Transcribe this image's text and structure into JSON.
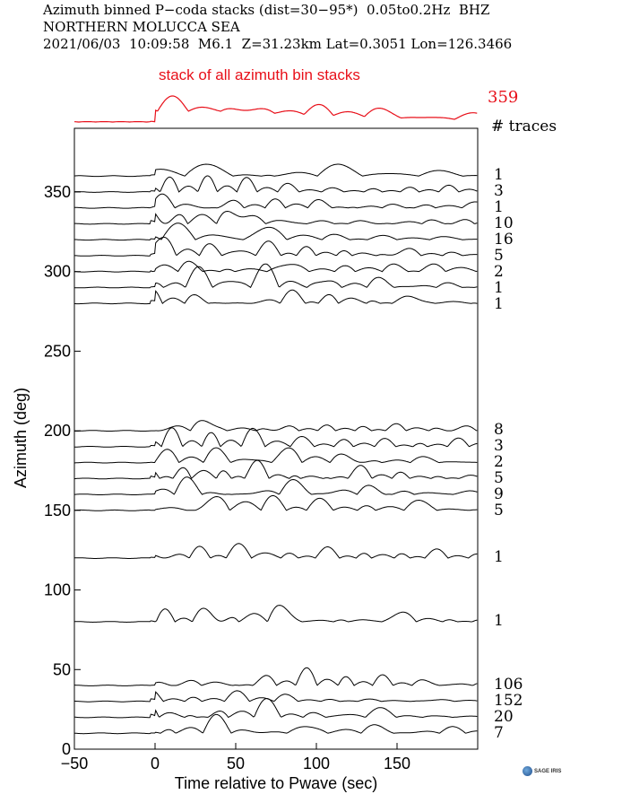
{
  "header": {
    "line1": "Azimuth binned P−coda stacks (dist=30−95*)  0.05to0.2Hz  BHZ",
    "line2": "NORTHERN MOLUCCA SEA",
    "line3": "2021/06/03  10:09:58  M6.1  Z=31.23km Lat=0.3051 Lon=126.3466"
  },
  "logo": {
    "text": "SAGE IRIS"
  },
  "colors": {
    "stack": "#e8101a",
    "traces": "#000000"
  },
  "chart_data": {
    "type": "line",
    "title": "",
    "xlabel": "Time relative to Pwave (sec)",
    "ylabel": "Azimuth (deg)",
    "xlim": [
      -50,
      200
    ],
    "ylim": [
      0,
      390
    ],
    "xticks": [
      -50,
      0,
      50,
      100,
      150
    ],
    "xtick_labels": [
      "−50",
      "0",
      "50",
      "100",
      "150"
    ],
    "yticks": [
      0,
      50,
      100,
      150,
      200,
      250,
      300,
      350
    ],
    "yticks_labels": [
      "0",
      "50",
      "100",
      "150",
      "200",
      "250",
      "300",
      "350"
    ],
    "stack": {
      "label": "stack of all azimuth bin stacks",
      "count": "359",
      "count_header": "# traces"
    },
    "series": [
      {
        "azimuth": 360,
        "traces": "1"
      },
      {
        "azimuth": 350,
        "traces": "3"
      },
      {
        "azimuth": 340,
        "traces": "1"
      },
      {
        "azimuth": 330,
        "traces": "10"
      },
      {
        "azimuth": 320,
        "traces": "16"
      },
      {
        "azimuth": 310,
        "traces": "5"
      },
      {
        "azimuth": 300,
        "traces": "2"
      },
      {
        "azimuth": 290,
        "traces": "1"
      },
      {
        "azimuth": 280,
        "traces": "1"
      },
      {
        "azimuth": 200,
        "traces": "8"
      },
      {
        "azimuth": 190,
        "traces": "3"
      },
      {
        "azimuth": 180,
        "traces": "2"
      },
      {
        "azimuth": 170,
        "traces": "5"
      },
      {
        "azimuth": 160,
        "traces": "9"
      },
      {
        "azimuth": 150,
        "traces": "5"
      },
      {
        "azimuth": 120,
        "traces": "1"
      },
      {
        "azimuth": 80,
        "traces": "1"
      },
      {
        "azimuth": 40,
        "traces": "106"
      },
      {
        "azimuth": 30,
        "traces": "152"
      },
      {
        "azimuth": 20,
        "traces": "20"
      },
      {
        "azimuth": 10,
        "traces": "7"
      }
    ]
  }
}
